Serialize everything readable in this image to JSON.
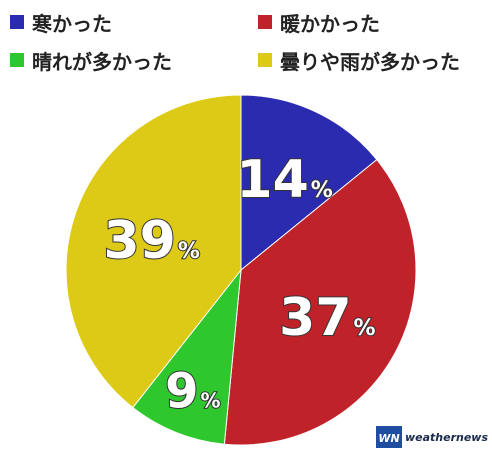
{
  "chart_data": {
    "type": "pie",
    "unit": "%",
    "slices": [
      {
        "label": "寒かった",
        "value": 14,
        "color": "#2b2bb0"
      },
      {
        "label": "暖かかった",
        "value": 37,
        "color": "#c0222a"
      },
      {
        "label": "晴れが多かった",
        "value": 9,
        "color": "#2ec72e"
      },
      {
        "label": "曇りや雨が多かった",
        "value": 39,
        "color": "#dcca16"
      }
    ],
    "start": "12 o'clock",
    "direction": "clockwise",
    "legend_position": "top"
  },
  "branding": {
    "logo_text": "weathernews",
    "logo_mark": "WN"
  }
}
